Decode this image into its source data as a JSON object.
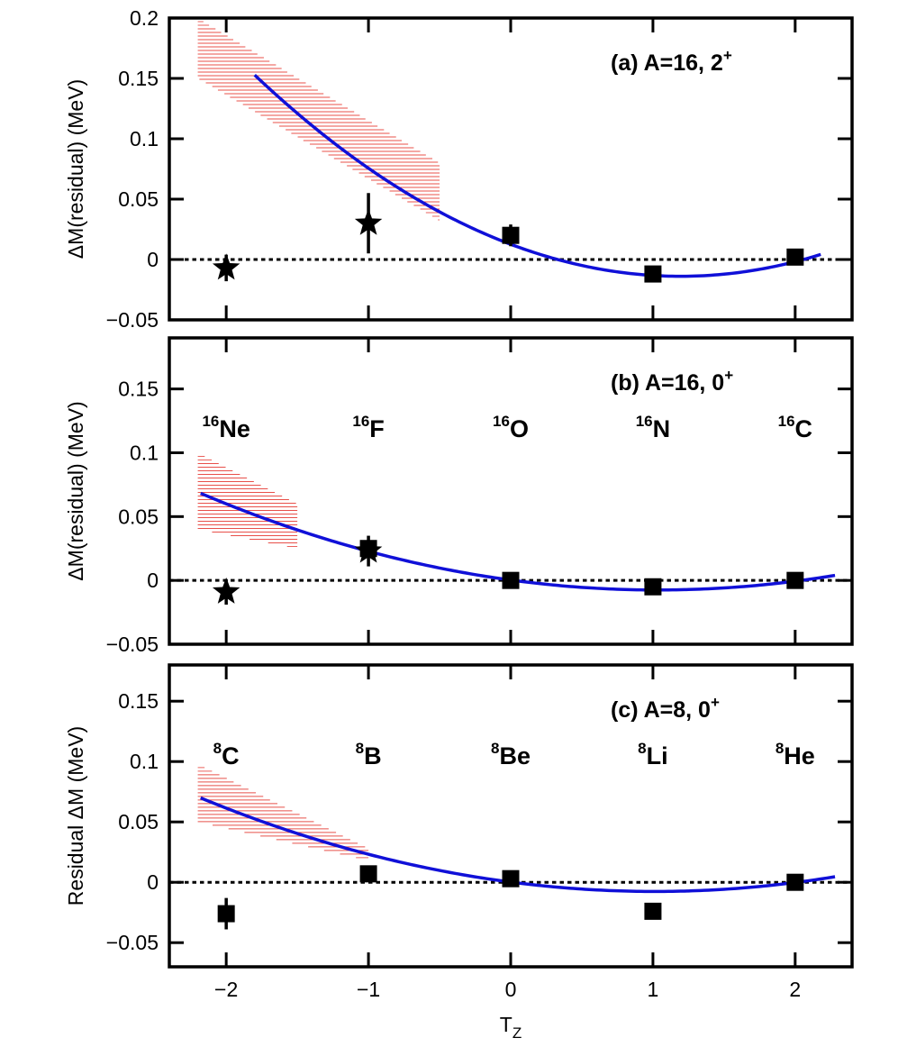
{
  "x_axis": {
    "ticks": [
      -2,
      -1,
      0,
      1,
      2
    ],
    "tick_labels": [
      "−2",
      "−1",
      "0",
      "1",
      "2"
    ],
    "label_main": "T",
    "label_sub": "Z",
    "range": [
      -2.4,
      2.4
    ]
  },
  "colors": {
    "fit_line": "#1010d8",
    "band": "#e8504a",
    "marker": "#000000",
    "zero_line": "#000000"
  },
  "chart_data": [
    {
      "type": "scatter",
      "panel": "a",
      "title_main": "(a) A=16, 2",
      "title_sup": "+",
      "ylabel": "ΔM(residual) (MeV)",
      "ylim": [
        -0.05,
        0.2
      ],
      "yticks": [
        -0.05,
        0,
        0.05,
        0.1,
        0.15,
        0.2
      ],
      "ytick_labels": [
        "−0.05",
        "0",
        "0.05",
        "0.1",
        "0.15",
        "0.2"
      ],
      "nuclei": [],
      "points": [
        {
          "x": -2,
          "y": -0.007,
          "err": 0.011,
          "marker": "star"
        },
        {
          "x": -1,
          "y": 0.03,
          "err": 0.025,
          "marker": "star"
        },
        {
          "x": 0,
          "y": 0.02,
          "err": 0.009,
          "marker": "square"
        },
        {
          "x": 1,
          "y": -0.012,
          "err": 0.004,
          "marker": "square"
        },
        {
          "x": 2,
          "y": 0.002,
          "err": 0.004,
          "marker": "square"
        }
      ],
      "fit": {
        "a": 0.0186,
        "b": -0.0444,
        "c": 0.0126,
        "x_range": [
          -1.8,
          2.18
        ]
      },
      "band": {
        "x_range": [
          -2.2,
          -0.5
        ],
        "top": [
          0.2,
          0.08
        ],
        "bottom": [
          0.15,
          0.032
        ]
      }
    },
    {
      "type": "scatter",
      "panel": "b",
      "title_main": "(b) A=16, 0",
      "title_sup": "+",
      "ylabel": "ΔM(residual) (MeV)",
      "ylim": [
        -0.05,
        0.19
      ],
      "yticks": [
        -0.05,
        0,
        0.05,
        0.1,
        0.15
      ],
      "ytick_labels": [
        "−0.05",
        "0",
        "0.05",
        "0.1",
        "0.15"
      ],
      "nuclei": [
        {
          "x": -2,
          "mass": "16",
          "sym": "Ne"
        },
        {
          "x": -1,
          "mass": "16",
          "sym": "F"
        },
        {
          "x": 0,
          "mass": "16",
          "sym": "O"
        },
        {
          "x": 1,
          "mass": "16",
          "sym": "N"
        },
        {
          "x": 2,
          "mass": "16",
          "sym": "C"
        }
      ],
      "points": [
        {
          "x": -2,
          "y": -0.009,
          "err": 0.01,
          "marker": "star"
        },
        {
          "x": -1,
          "y": 0.023,
          "err": 0.012,
          "marker": "star"
        },
        {
          "x": -1,
          "y": 0.025,
          "err": 0.004,
          "marker": "square"
        },
        {
          "x": 0,
          "y": 0.0,
          "err": 0.004,
          "marker": "square"
        },
        {
          "x": 1,
          "y": -0.005,
          "err": 0.004,
          "marker": "square"
        },
        {
          "x": 2,
          "y": 0.0,
          "err": 0.004,
          "marker": "square"
        }
      ],
      "fit": {
        "a": 0.00735,
        "b": -0.01515,
        "c": 0.0003,
        "x_range": [
          -2.18,
          2.28
        ]
      },
      "band": {
        "x_range": [
          -2.2,
          -1.5
        ],
        "top": [
          0.1,
          0.06
        ],
        "bottom": [
          0.04,
          0.025
        ]
      }
    },
    {
      "type": "scatter",
      "panel": "c",
      "title_main": "(c) A=8, 0",
      "title_sup": "+",
      "ylabel": "Residual ΔM (MeV)",
      "ylim": [
        -0.07,
        0.18
      ],
      "yticks": [
        -0.05,
        0,
        0.05,
        0.1,
        0.15
      ],
      "ytick_labels": [
        "−0.05",
        "0",
        "0.05",
        "0.1",
        "0.15"
      ],
      "nuclei": [
        {
          "x": -2,
          "mass": "8",
          "sym": "C"
        },
        {
          "x": -1,
          "mass": "8",
          "sym": "B"
        },
        {
          "x": 0,
          "mass": "8",
          "sym": "Be"
        },
        {
          "x": 1,
          "mass": "8",
          "sym": "Li"
        },
        {
          "x": 2,
          "mass": "8",
          "sym": "He"
        }
      ],
      "points": [
        {
          "x": -2,
          "y": -0.026,
          "err": 0.013,
          "marker": "square"
        },
        {
          "x": -1,
          "y": 0.007,
          "err": 0.006,
          "marker": "square"
        },
        {
          "x": 0,
          "y": 0.003,
          "err": 0.003,
          "marker": "square"
        },
        {
          "x": 1,
          "y": -0.024,
          "err": 0.003,
          "marker": "square"
        },
        {
          "x": 2,
          "y": 0.0,
          "err": 0.003,
          "marker": "square"
        }
      ],
      "fit": {
        "a": 0.0076,
        "b": -0.0154,
        "c": 0.0002,
        "x_range": [
          -2.18,
          2.28
        ]
      },
      "band": {
        "x_range": [
          -2.2,
          -1.0
        ],
        "top": [
          0.098,
          0.028
        ],
        "bottom": [
          0.05,
          0.018
        ]
      }
    }
  ]
}
